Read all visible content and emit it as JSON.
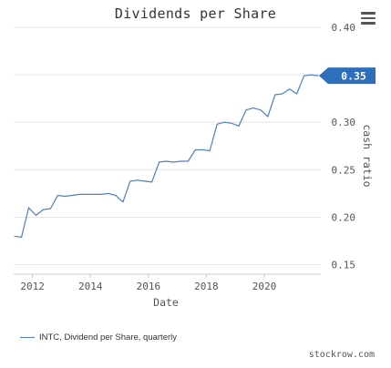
{
  "title": "Dividends per Share",
  "legend_label": "INTC, Dividend per Share, quarterly",
  "credit": "stockrow.com",
  "menu_icon": "hamburger-menu-icon",
  "colors": {
    "line": "#4f7fbf",
    "badge": "#2d6fbd",
    "grid": "#e6e6e6",
    "axis": "#c8c8c8",
    "text": "#555555"
  },
  "chart_data": {
    "type": "line",
    "title": "Dividends per Share",
    "xlabel": "Date",
    "ylabel": "cash ratio",
    "x_tick_labels": [
      "2012",
      "2014",
      "2016",
      "2018",
      "2020"
    ],
    "y_tick_labels": [
      "0.15",
      "0.20",
      "0.25",
      "0.30",
      "0.35",
      "0.40"
    ],
    "y_ticks": [
      0.15,
      0.2,
      0.25,
      0.3,
      0.35,
      0.4
    ],
    "ylim": [
      0.14,
      0.4
    ],
    "xlim": [
      2011.35,
      2021.95
    ],
    "grid": true,
    "legend_position": "bottom-left",
    "y_axis_side": "right",
    "last_value_badge": "0.35",
    "series": [
      {
        "name": "INTC, Dividend per Share, quarterly",
        "x": [
          2011.37,
          2011.62,
          2011.87,
          2012.12,
          2012.37,
          2012.62,
          2012.87,
          2013.12,
          2013.37,
          2013.62,
          2013.87,
          2014.12,
          2014.37,
          2014.62,
          2014.87,
          2015.12,
          2015.37,
          2015.62,
          2015.87,
          2016.12,
          2016.37,
          2016.62,
          2016.87,
          2017.12,
          2017.37,
          2017.62,
          2017.87,
          2018.12,
          2018.37,
          2018.62,
          2018.87,
          2019.12,
          2019.37,
          2019.62,
          2019.87,
          2020.12,
          2020.37,
          2020.62,
          2020.87,
          2021.12,
          2021.37,
          2021.62,
          2021.87
        ],
        "values": [
          0.18,
          0.179,
          0.21,
          0.202,
          0.208,
          0.209,
          0.223,
          0.222,
          0.223,
          0.224,
          0.224,
          0.224,
          0.224,
          0.225,
          0.223,
          0.216,
          0.238,
          0.239,
          0.238,
          0.237,
          0.258,
          0.259,
          0.258,
          0.259,
          0.259,
          0.271,
          0.271,
          0.27,
          0.298,
          0.3,
          0.299,
          0.296,
          0.313,
          0.315,
          0.313,
          0.306,
          0.329,
          0.33,
          0.335,
          0.33,
          0.349,
          0.35,
          0.349
        ]
      }
    ]
  }
}
